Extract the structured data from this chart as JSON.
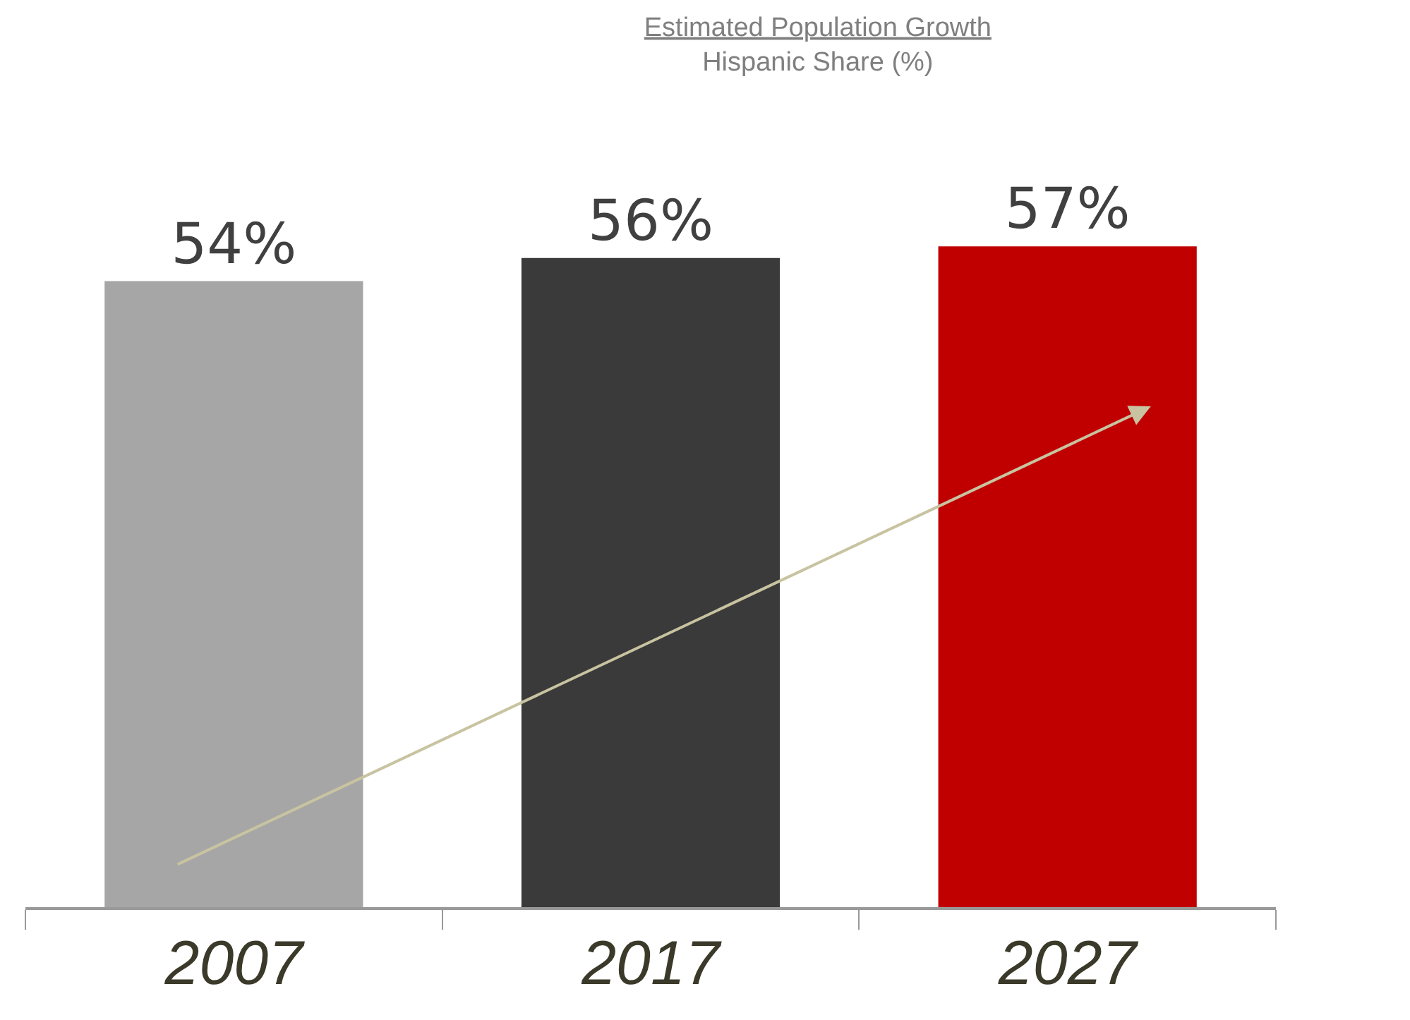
{
  "chart_data": {
    "type": "bar",
    "title": "Estimated Population Growth",
    "subtitle": "Hispanic Share (%)",
    "categories": [
      "2007",
      "2017",
      "2027"
    ],
    "values": [
      54,
      56,
      57
    ],
    "colors": [
      "#a6a6a6",
      "#3a3a3a",
      "#c00000"
    ],
    "value_labels": [
      "54%",
      "56%",
      "57%"
    ],
    "tick_labels": "x"
  }
}
